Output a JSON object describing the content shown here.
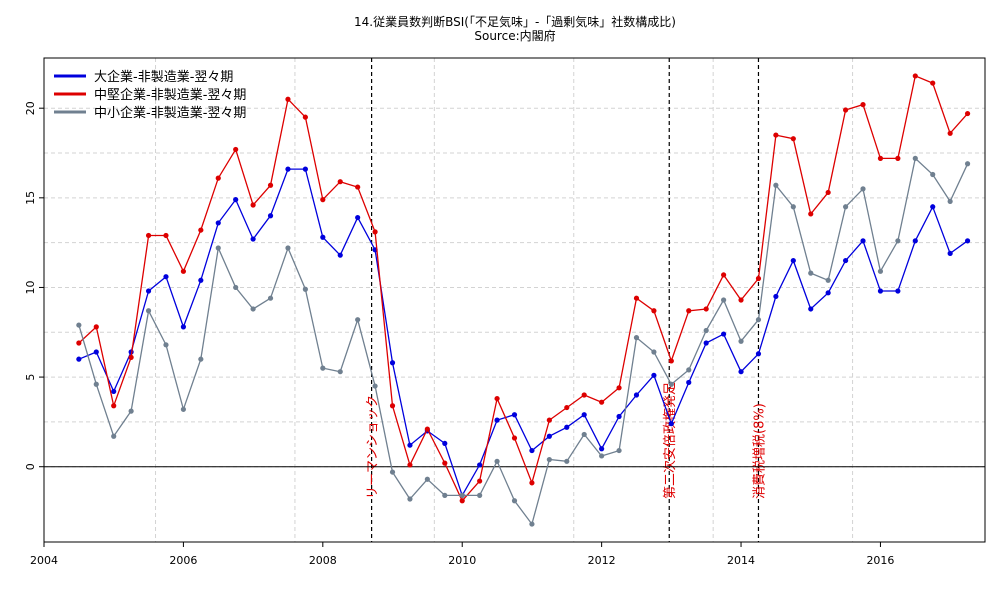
{
  "chart_data": {
    "type": "line",
    "title": "14.従業員数判断BSI(「不足気味」-「過剰気味」社数構成比)",
    "subtitle": "Source:内閣府",
    "xlim": [
      2004.0,
      2017.5
    ],
    "ylim": [
      -4.2,
      22.8
    ],
    "x_ticks": [
      2004,
      2006,
      2008,
      2010,
      2012,
      2014,
      2016
    ],
    "y_ticks": [
      0,
      5,
      10,
      15,
      20
    ],
    "grid": true,
    "legend_position": "top-left",
    "x": [
      2004.5,
      2004.75,
      2005.0,
      2005.25,
      2005.5,
      2005.75,
      2006.0,
      2006.25,
      2006.5,
      2006.75,
      2007.0,
      2007.25,
      2007.5,
      2007.75,
      2008.0,
      2008.25,
      2008.5,
      2008.75,
      2009.0,
      2009.25,
      2009.5,
      2009.75,
      2010.0,
      2010.25,
      2010.5,
      2010.75,
      2011.0,
      2011.25,
      2011.5,
      2011.75,
      2012.0,
      2012.25,
      2012.5,
      2012.75,
      2013.0,
      2013.25,
      2013.5,
      2013.75,
      2014.0,
      2014.25,
      2014.5,
      2014.75,
      2015.0,
      2015.25,
      2015.5,
      2015.75,
      2016.0,
      2016.25,
      2016.5,
      2016.75,
      2017.0,
      2017.25
    ],
    "series": [
      {
        "name": "大企業-非製造業-翌々期",
        "color": "#0000dd",
        "values": [
          6.0,
          6.4,
          4.2,
          6.4,
          9.8,
          10.6,
          7.8,
          10.4,
          13.6,
          14.9,
          12.7,
          14.0,
          16.6,
          16.6,
          12.8,
          11.8,
          13.9,
          12.1,
          5.8,
          1.2,
          2.0,
          1.3,
          -1.6,
          0.1,
          2.6,
          2.9,
          0.9,
          1.7,
          2.2,
          2.9,
          1.0,
          2.8,
          4.0,
          5.1,
          2.4,
          4.7,
          6.9,
          7.4,
          5.3,
          6.3,
          9.5,
          11.5,
          8.8,
          9.7,
          11.5,
          12.6,
          9.8,
          9.8,
          12.6,
          14.5,
          11.9,
          12.6
        ]
      },
      {
        "name": "中堅企業-非製造業-翌々期",
        "color": "#dd0000",
        "values": [
          6.9,
          7.8,
          3.4,
          6.1,
          12.9,
          12.9,
          10.9,
          13.2,
          16.1,
          17.7,
          14.6,
          15.7,
          20.5,
          19.5,
          14.9,
          15.9,
          15.6,
          13.1,
          3.4,
          0.1,
          2.1,
          0.2,
          -1.9,
          -0.8,
          3.8,
          1.6,
          -0.9,
          2.6,
          3.3,
          4.0,
          3.6,
          4.4,
          9.4,
          8.7,
          5.9,
          8.7,
          8.8,
          10.7,
          9.3,
          10.5,
          18.5,
          18.3,
          14.1,
          15.3,
          19.9,
          20.2,
          17.2,
          17.2,
          21.8,
          21.4,
          18.6,
          19.7
        ]
      },
      {
        "name": "中小企業-非製造業-翌々期",
        "color": "#708090",
        "values": [
          7.9,
          4.6,
          1.7,
          3.1,
          8.7,
          6.8,
          3.2,
          6.0,
          12.2,
          10.0,
          8.8,
          9.4,
          12.2,
          9.9,
          5.5,
          5.3,
          8.2,
          4.5,
          -0.3,
          -1.8,
          -0.7,
          -1.6,
          -1.6,
          -1.6,
          0.3,
          -1.9,
          -3.2,
          0.4,
          0.3,
          1.8,
          0.6,
          0.9,
          7.2,
          6.4,
          4.6,
          5.4,
          7.6,
          9.3,
          7.0,
          8.2,
          15.7,
          14.5,
          10.8,
          10.4,
          14.5,
          15.5,
          10.9,
          12.6,
          17.2,
          16.3,
          14.8,
          16.9
        ]
      }
    ],
    "events": [
      {
        "x": 2008.7,
        "label": "リーマンショック"
      },
      {
        "x": 2012.97,
        "label": "第二次安倍政権発足"
      },
      {
        "x": 2014.25,
        "label": "消費税増税(8%)"
      }
    ],
    "hline": 0
  }
}
